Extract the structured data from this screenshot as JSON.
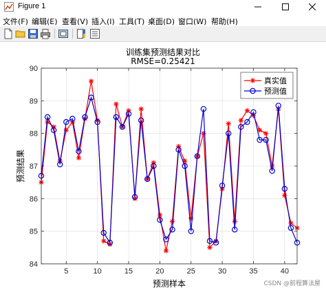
{
  "window": {
    "title": "Figure 1"
  },
  "menu": [
    "文件(F)",
    "编辑(E)",
    "查看(V)",
    "插入(I)",
    "工具(T)",
    "桌面(D)",
    "窗口(W)",
    "帮助(H)"
  ],
  "toolbar_icons": [
    "new-file-icon",
    "open-folder-icon",
    "save-icon",
    "print-icon",
    "link-plot-icon",
    "colorbar-icon",
    "legend-icon"
  ],
  "figure": {
    "title": "训练集预测结果对比",
    "subtitle": "RMSE=0.25421",
    "watermark": "CSDN @前程算法屋"
  },
  "chart_data": {
    "type": "line",
    "title": "训练集预测结果对比",
    "subtitle": "RMSE=0.25421",
    "xlabel": "预测样本",
    "ylabel": "预测结果",
    "xlim": [
      1,
      42
    ],
    "ylim": [
      84,
      90
    ],
    "xticks": [
      5,
      10,
      15,
      20,
      25,
      30,
      35,
      40
    ],
    "yticks": [
      84,
      85,
      86,
      87,
      88,
      89,
      90
    ],
    "grid": true,
    "legend_position": "top-right",
    "x": [
      1,
      2,
      3,
      4,
      5,
      6,
      7,
      8,
      9,
      10,
      11,
      12,
      13,
      14,
      15,
      16,
      17,
      18,
      19,
      20,
      21,
      22,
      23,
      24,
      25,
      26,
      27,
      28,
      29,
      30,
      31,
      32,
      33,
      34,
      35,
      36,
      37,
      38,
      39,
      40,
      41,
      42
    ],
    "series": [
      {
        "name": "真实值",
        "color": "#ff0000",
        "marker": "asterisk",
        "values": [
          86.5,
          88.35,
          88.2,
          87.15,
          88.1,
          88.35,
          87.25,
          88.45,
          89.6,
          88.4,
          84.7,
          84.6,
          88.9,
          88.2,
          88.7,
          86.0,
          88.75,
          86.6,
          87.1,
          85.5,
          84.4,
          85.3,
          87.6,
          87.15,
          85.4,
          87.3,
          88.0,
          84.5,
          84.7,
          86.3,
          88.3,
          85.3,
          88.4,
          88.7,
          88.55,
          88.1,
          88.0,
          87.0,
          88.75,
          86.1,
          85.25,
          85.1
        ]
      },
      {
        "name": "预测值",
        "color": "#0000cc",
        "marker": "circle",
        "values": [
          86.7,
          88.5,
          88.1,
          87.05,
          88.35,
          88.45,
          87.45,
          88.5,
          89.1,
          88.35,
          84.95,
          84.65,
          88.5,
          88.2,
          88.6,
          86.05,
          88.4,
          86.6,
          87.0,
          85.35,
          84.75,
          85.05,
          87.5,
          87.0,
          85.0,
          87.3,
          88.75,
          84.7,
          84.65,
          86.4,
          88.0,
          85.05,
          88.2,
          88.35,
          88.65,
          87.8,
          87.8,
          86.85,
          88.85,
          86.3,
          85.1,
          84.65
        ]
      }
    ]
  }
}
